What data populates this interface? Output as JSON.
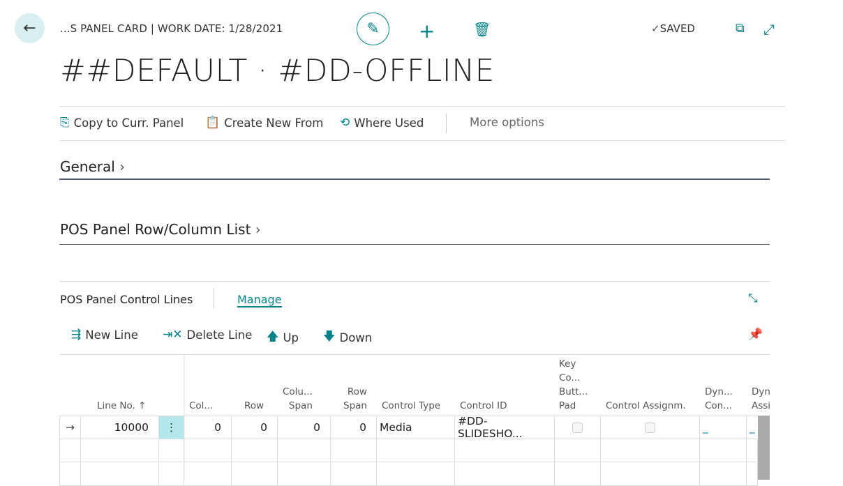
{
  "header": {
    "breadcrumb": "...S PANEL CARD | WORK DATE: 1/28/2021",
    "title": "##DEFAULT · #DD-OFFLINE",
    "status": "SAVED"
  },
  "actions": [
    {
      "label": "Copy to Curr. Panel",
      "icon": "copy-icon"
    },
    {
      "label": "Create New From",
      "icon": "clipboard-icon"
    },
    {
      "label": "Where Used",
      "icon": "where-used-icon"
    },
    {
      "label": "More options"
    }
  ],
  "sections": {
    "general": "General",
    "rowcol": "POS Panel Row/Column List"
  },
  "lines": {
    "title": "POS Panel Control Lines",
    "manage": "Manage",
    "new_line": "New Line",
    "delete_line": "Delete Line",
    "up": "Up",
    "down": "Down"
  },
  "table": {
    "headers": [
      "Line No. ↑",
      "Col...",
      "Row",
      "Colu...\nSpan",
      "Row\nSpan",
      "Control Type",
      "Control ID",
      "Key\nCo...\nButt...\nPad",
      "Control Assignm.",
      "Dyn...\nCon...",
      "Dyn\nAssi"
    ],
    "rows": [
      {
        "line_no": "10000",
        "col": "0",
        "row": "0",
        "col_span": "0",
        "row_span": "0",
        "control_type": "Media",
        "control_id": "#DD-SLIDESHO...",
        "key_pad": false,
        "control_assign": "_",
        "dyn_con": false,
        "dyn_assign": "_"
      }
    ]
  }
}
